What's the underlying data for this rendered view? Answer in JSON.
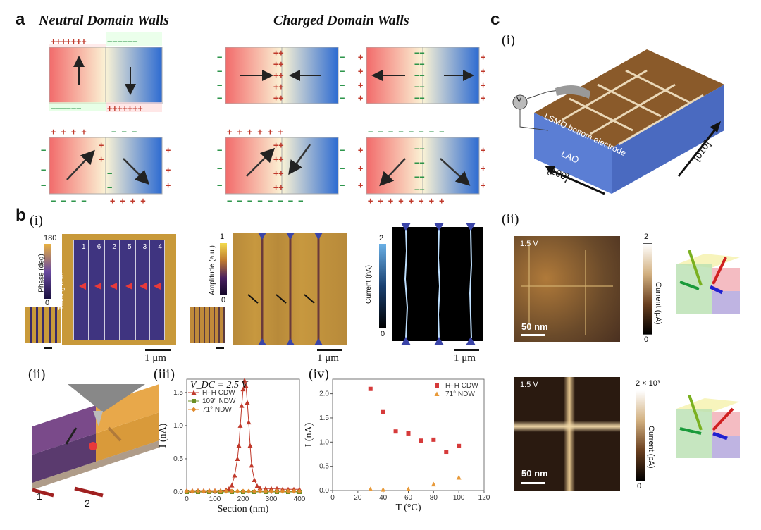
{
  "panel_labels": {
    "a": "a",
    "b": "b",
    "c": "c"
  },
  "panel_a": {
    "title_neutral": "Neutral Domain Walls",
    "title_charged": "Charged Domain Walls",
    "sign_plus": "+",
    "sign_minus": "−"
  },
  "panel_b": {
    "sub_i": "(i)",
    "sub_ii": "(ii)",
    "sub_iii": "(iii)",
    "sub_iv": "(iv)",
    "phase_label": "Phase (deg)",
    "phase_max": "180",
    "phase_min": "0",
    "domain_numbers": [
      "1",
      "6",
      "2",
      "5",
      "3",
      "4"
    ],
    "trailing_field": "Trailing field",
    "amplitude_label": "Amplitude (a.u.)",
    "amp_max": "1",
    "amp_min": "0",
    "current_label": "Current (nA)",
    "cur_max": "2",
    "cur_min": "0",
    "scale_1um": "1 μm",
    "domain_labels_3d": [
      "1",
      "2"
    ]
  },
  "panel_c": {
    "sub_i": "(i)",
    "sub_ii": "(ii)",
    "lsmo": "LSMO bottom electrode",
    "lao": "LAO",
    "dir_100": "[100]",
    "dir_010": "[010]",
    "voltmeter": "V",
    "img_voltage": "1.5 V",
    "scale_50nm": "50 nm",
    "cbar1_label": "Current (pA)",
    "cbar1_max": "2",
    "cbar1_min": "0",
    "cbar2_label": "Current (pA)",
    "cbar2_max": "2 × 10³",
    "cbar2_min": "0"
  },
  "chart_data": [
    {
      "type": "line",
      "panel": "b(iii)",
      "annotation": "V_DC = 2.5 V",
      "xlabel": "Section (nm)",
      "ylabel": "I (nA)",
      "xlim": [
        0,
        400
      ],
      "ylim": [
        0,
        1.7
      ],
      "xticks": [
        0,
        100,
        200,
        300,
        400
      ],
      "yticks": [
        0.0,
        0.5,
        1.0,
        1.5
      ],
      "legend": [
        "H–H CDW",
        "109° NDW",
        "71° NDW"
      ],
      "series": [
        {
          "name": "H–H CDW",
          "color": "#c0392b",
          "marker": "triangle",
          "x": [
            0,
            20,
            40,
            60,
            80,
            100,
            120,
            140,
            150,
            160,
            170,
            180,
            185,
            190,
            195,
            200,
            205,
            210,
            215,
            220,
            225,
            230,
            240,
            250,
            260,
            280,
            300,
            320,
            340,
            360,
            380,
            400
          ],
          "y": [
            0.02,
            0.02,
            0.02,
            0.02,
            0.02,
            0.02,
            0.02,
            0.03,
            0.05,
            0.1,
            0.25,
            0.5,
            0.7,
            1.0,
            1.3,
            1.55,
            1.68,
            1.6,
            1.35,
            1.05,
            0.7,
            0.4,
            0.18,
            0.09,
            0.06,
            0.05,
            0.05,
            0.05,
            0.04,
            0.04,
            0.04,
            0.04
          ]
        },
        {
          "name": "109° NDW",
          "color": "#6b8e23",
          "marker": "square",
          "x": [
            0,
            40,
            80,
            120,
            160,
            200,
            240,
            280,
            320,
            360,
            400
          ],
          "y": [
            0.0,
            0.0,
            0.0,
            0.0,
            0.0,
            0.0,
            0.0,
            0.0,
            0.0,
            0.0,
            0.0
          ]
        },
        {
          "name": "71° NDW",
          "color": "#e08a2c",
          "marker": "diamond",
          "x": [
            0,
            20,
            40,
            60,
            80,
            100,
            120,
            140,
            160,
            180,
            200,
            220,
            240,
            260,
            280,
            300,
            320,
            340,
            360,
            380,
            400
          ],
          "y": [
            0.01,
            0.01,
            0.01,
            0.01,
            0.01,
            0.01,
            0.01,
            0.01,
            0.01,
            0.01,
            0.01,
            0.01,
            0.01,
            0.01,
            0.01,
            0.01,
            0.01,
            0.01,
            0.01,
            0.01,
            0.01
          ]
        }
      ]
    },
    {
      "type": "scatter",
      "panel": "b(iv)",
      "xlabel": "T (°C)",
      "ylabel": "I (nA)",
      "xlim": [
        0,
        120
      ],
      "ylim": [
        0,
        2.3
      ],
      "xticks": [
        0,
        20,
        40,
        60,
        80,
        100,
        120
      ],
      "yticks": [
        0.0,
        0.5,
        1.0,
        1.5,
        2.0
      ],
      "legend": [
        "H–H CDW",
        "71° NDW"
      ],
      "series": [
        {
          "name": "H–H CDW",
          "color": "#d63a3a",
          "marker": "square",
          "x": [
            30,
            40,
            50,
            60,
            70,
            80,
            90,
            100
          ],
          "y": [
            2.1,
            1.62,
            1.22,
            1.18,
            1.03,
            1.05,
            0.8,
            0.92
          ]
        },
        {
          "name": "71° NDW",
          "color": "#e89a3a",
          "marker": "triangle",
          "x": [
            30,
            40,
            60,
            80,
            100
          ],
          "y": [
            0.03,
            0.02,
            0.03,
            0.13,
            0.27
          ]
        }
      ]
    }
  ]
}
